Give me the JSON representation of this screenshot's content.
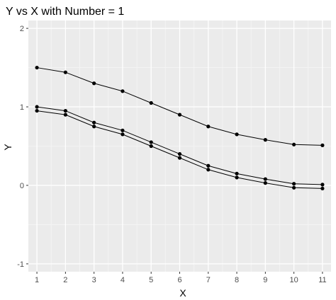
{
  "chart_data": {
    "type": "line",
    "title": "Y vs X with Number = 1",
    "xlabel": "X",
    "ylabel": "Y",
    "x": [
      1,
      2,
      3,
      4,
      5,
      6,
      7,
      8,
      9,
      10,
      11
    ],
    "xlim": [
      0.7,
      11.3
    ],
    "ylim": [
      -1.1,
      2.1
    ],
    "x_ticks": [
      1,
      2,
      3,
      4,
      5,
      6,
      7,
      8,
      9,
      10,
      11
    ],
    "y_ticks": [
      -1,
      0,
      1,
      2
    ],
    "grid": true,
    "legend": "none",
    "series": [
      {
        "values": [
          1.5,
          1.44,
          1.3,
          1.2,
          1.05,
          0.9,
          0.75,
          0.65,
          0.58,
          0.52,
          0.51
        ]
      },
      {
        "values": [
          1.0,
          0.95,
          0.8,
          0.7,
          0.55,
          0.4,
          0.25,
          0.15,
          0.08,
          0.02,
          0.01
        ]
      },
      {
        "values": [
          0.95,
          0.9,
          0.75,
          0.65,
          0.5,
          0.35,
          0.2,
          0.1,
          0.03,
          -0.03,
          -0.04
        ]
      }
    ],
    "colors": {
      "panel": "#ebebeb",
      "grid_major": "#ffffff",
      "grid_minor": "#f5f5f5",
      "line": "#000000",
      "point": "#000000",
      "tick": "#4d4d4d"
    }
  }
}
